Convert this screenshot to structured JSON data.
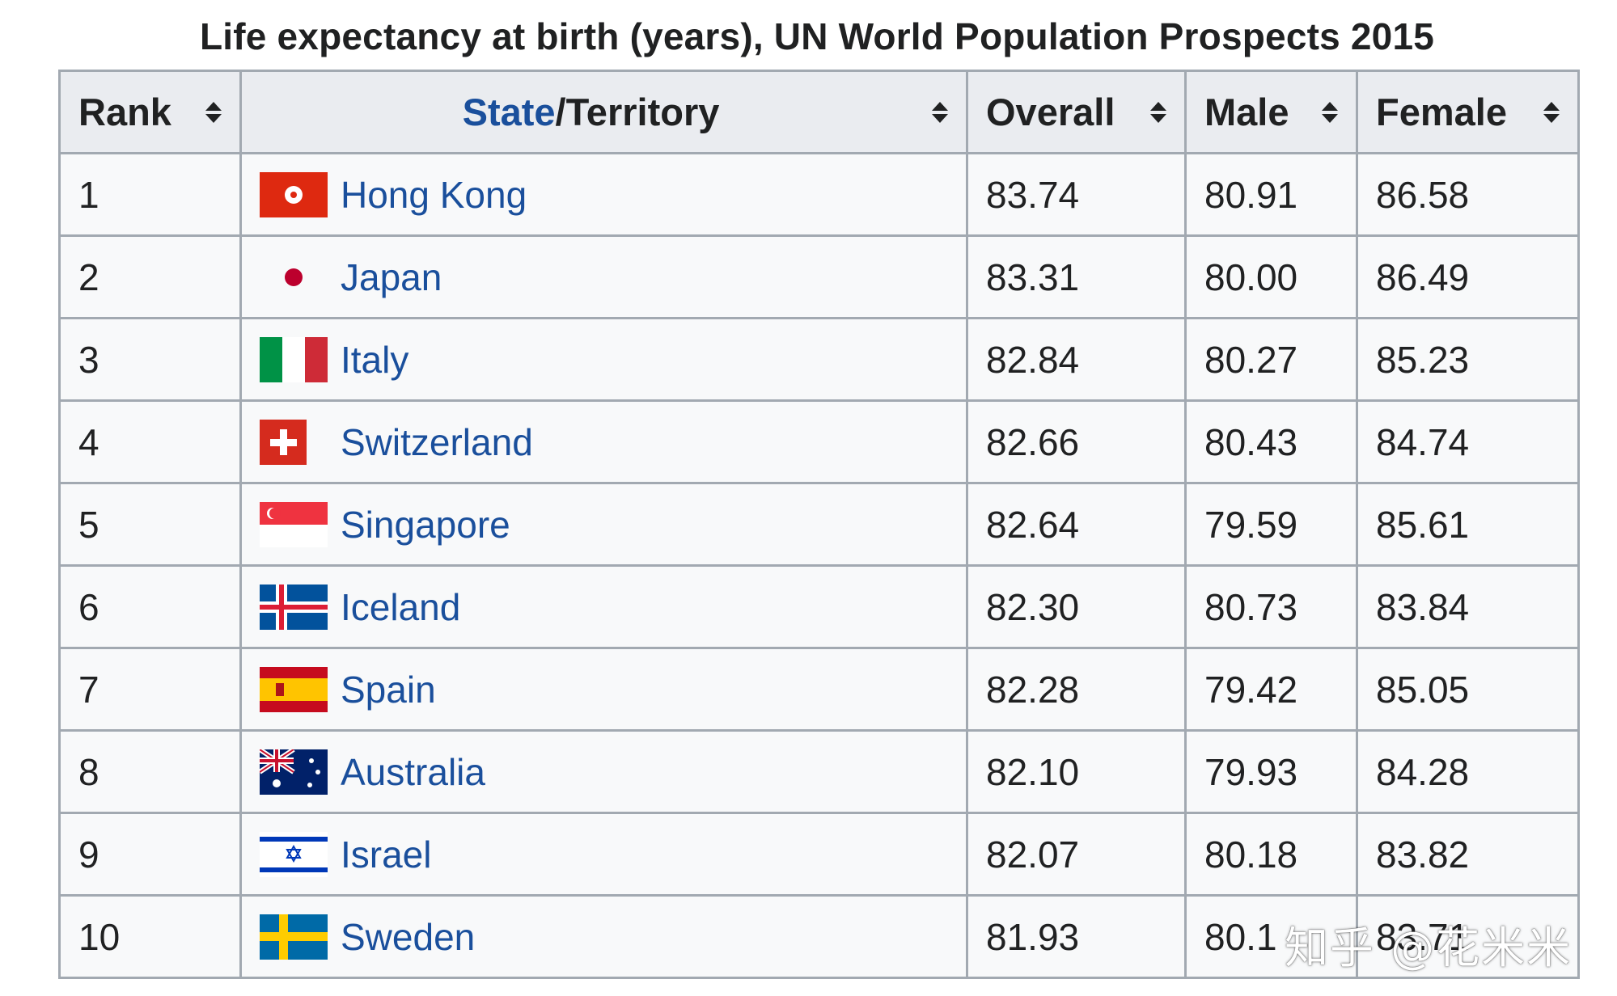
{
  "caption": "Life expectancy at birth (years), UN World Population Prospects 2015",
  "headers": {
    "rank": "Rank",
    "state_link": "State",
    "state_rest": "/Territory",
    "overall": "Overall",
    "male": "Male",
    "female": "Female"
  },
  "rows": [
    {
      "rank": "1",
      "name": "Hong Kong",
      "flag": "hong-kong-flag",
      "overall": "83.74",
      "male": "80.91",
      "female": "86.58"
    },
    {
      "rank": "2",
      "name": "Japan",
      "flag": "japan-flag",
      "overall": "83.31",
      "male": "80.00",
      "female": "86.49"
    },
    {
      "rank": "3",
      "name": "Italy",
      "flag": "italy-flag",
      "overall": "82.84",
      "male": "80.27",
      "female": "85.23"
    },
    {
      "rank": "4",
      "name": "Switzerland",
      "flag": "switzerland-flag",
      "overall": "82.66",
      "male": "80.43",
      "female": "84.74"
    },
    {
      "rank": "5",
      "name": "Singapore",
      "flag": "singapore-flag",
      "overall": "82.64",
      "male": "79.59",
      "female": "85.61"
    },
    {
      "rank": "6",
      "name": "Iceland",
      "flag": "iceland-flag",
      "overall": "82.30",
      "male": "80.73",
      "female": "83.84"
    },
    {
      "rank": "7",
      "name": "Spain",
      "flag": "spain-flag",
      "overall": "82.28",
      "male": "79.42",
      "female": "85.05"
    },
    {
      "rank": "8",
      "name": "Australia",
      "flag": "australia-flag",
      "overall": "82.10",
      "male": "79.93",
      "female": "84.28"
    },
    {
      "rank": "9",
      "name": "Israel",
      "flag": "israel-flag",
      "overall": "82.07",
      "male": "80.18",
      "female": "83.82"
    },
    {
      "rank": "10",
      "name": "Sweden",
      "flag": "sweden-flag",
      "overall": "81.93",
      "male": "80.1",
      "female": "83.71"
    }
  ],
  "watermark": "知乎 @花米米",
  "colors": {
    "header_bg": "#eaecf0",
    "cell_bg": "#f8f9fa",
    "border": "#a2a9b1",
    "link": "#1a4f9c"
  }
}
